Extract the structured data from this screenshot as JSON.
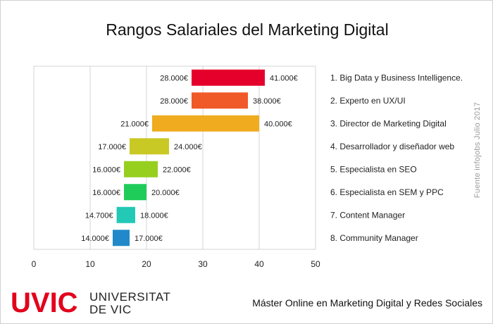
{
  "title": "Rangos Salariales del Marketing Digital",
  "source_note": "Fuente infojobs Julio 2017",
  "logo": {
    "mark": "UVIC",
    "line1": "UNIVERSITAT",
    "line2": "DE VIC"
  },
  "footer": "Máster Online en Marketing Digital y Redes Sociales",
  "chart_data": {
    "type": "bar",
    "orientation": "horizontal-range",
    "title": "Rangos Salariales del Marketing Digital",
    "xlim": [
      0,
      50
    ],
    "xticks": [
      "0",
      "10",
      "20",
      "30",
      "40",
      "50"
    ],
    "grid": true,
    "categories": [
      "1. Big Data y Business Intelligence.",
      "2. Experto en UX/UI",
      "3. Director de Marketing Digital",
      "4. Desarrollador y diseñador web",
      "5. Especialista en SEO",
      "6. Especialista en SEM y PPC",
      "7. Content Manager",
      "8. Community Manager"
    ],
    "min_labels": [
      "28.000€",
      "28.000€",
      "21.000€",
      "17.000€",
      "16.000€",
      "16.000€",
      "14.700€",
      "14.000€"
    ],
    "max_labels": [
      "41.000€",
      "38.000€",
      "40.000€",
      "24.000€",
      "22.000€",
      "20.000€",
      "18.000€",
      "17.000€"
    ],
    "min_values": [
      28,
      28,
      21,
      17,
      16,
      16,
      14.7,
      14
    ],
    "max_values": [
      41,
      38,
      40,
      24,
      22,
      20,
      18,
      17
    ],
    "colors": [
      "#e4002b",
      "#f05a28",
      "#f0ab1e",
      "#c9c925",
      "#96cf1e",
      "#1fcc5a",
      "#22c9b5",
      "#2189c9"
    ]
  }
}
